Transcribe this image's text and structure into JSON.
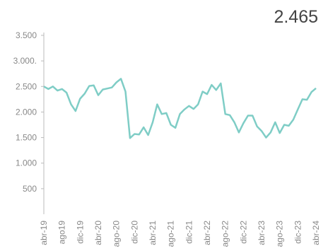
{
  "chart_data": {
    "type": "line",
    "headline": "2.465",
    "categories": [
      "abr-19",
      null,
      null,
      null,
      "ago19",
      null,
      null,
      null,
      "dic-19",
      null,
      null,
      null,
      "abr-20",
      null,
      null,
      null,
      "ago-20",
      null,
      null,
      null,
      "dic-20",
      null,
      null,
      null,
      "abr-21",
      null,
      null,
      null,
      "ago-21",
      null,
      null,
      null,
      "dic-21",
      null,
      null,
      null,
      "abr-22",
      null,
      null,
      null,
      "ago-22",
      null,
      null,
      null,
      "dic-22",
      null,
      null,
      null,
      "abr-23",
      null,
      null,
      null,
      "ago-23",
      null,
      null,
      null,
      "dic-23",
      null,
      null,
      null,
      "abr-24"
    ],
    "values": [
      2500,
      2450,
      2500,
      2420,
      2450,
      2380,
      2150,
      2020,
      2260,
      2360,
      2510,
      2520,
      2330,
      2440,
      2460,
      2480,
      2580,
      2650,
      2400,
      1490,
      1570,
      1560,
      1700,
      1550,
      1800,
      2150,
      1960,
      1980,
      1750,
      1690,
      1960,
      2050,
      2120,
      2060,
      2150,
      2400,
      2350,
      2530,
      2430,
      2560,
      1960,
      1940,
      1800,
      1600,
      1780,
      1930,
      1930,
      1720,
      1630,
      1500,
      1600,
      1800,
      1590,
      1750,
      1730,
      1850,
      2050,
      2250,
      2240,
      2390,
      2465
    ],
    "color": "#7fcdc6",
    "ylim": [
      0,
      3500
    ],
    "yticks": [
      500,
      {
        "value": 1000,
        "label": "1.000"
      },
      {
        "value": 1500,
        "label": "1.500"
      },
      {
        "value": 2000,
        "label": "2.000"
      },
      {
        "value": 2500,
        "label": "2.500"
      },
      {
        "value": 3000,
        "label": "3.000."
      },
      {
        "value": 3500,
        "label": "3.500"
      }
    ]
  }
}
